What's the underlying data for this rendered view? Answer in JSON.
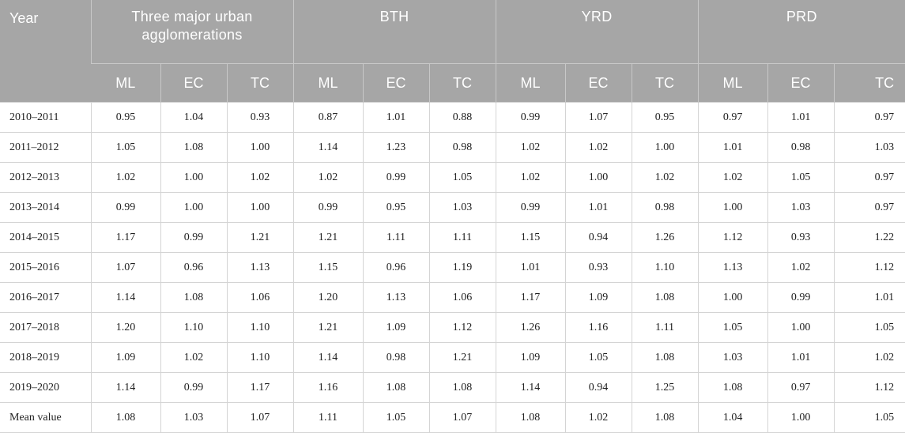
{
  "header": {
    "year": "Year",
    "groups": [
      "Three major urban agglomerations",
      "BTH",
      "YRD",
      "PRD"
    ],
    "subcolumns": [
      "ML",
      "EC",
      "TC"
    ]
  },
  "rows": [
    {
      "year": "2010–2011",
      "values": [
        "0.95",
        "1.04",
        "0.93",
        "0.87",
        "1.01",
        "0.88",
        "0.99",
        "1.07",
        "0.95",
        "0.97",
        "1.01",
        "0.97"
      ]
    },
    {
      "year": "2011–2012",
      "values": [
        "1.05",
        "1.08",
        "1.00",
        "1.14",
        "1.23",
        "0.98",
        "1.02",
        "1.02",
        "1.00",
        "1.01",
        "0.98",
        "1.03"
      ]
    },
    {
      "year": "2012–2013",
      "values": [
        "1.02",
        "1.00",
        "1.02",
        "1.02",
        "0.99",
        "1.05",
        "1.02",
        "1.00",
        "1.02",
        "1.02",
        "1.05",
        "0.97"
      ]
    },
    {
      "year": "2013–2014",
      "values": [
        "0.99",
        "1.00",
        "1.00",
        "0.99",
        "0.95",
        "1.03",
        "0.99",
        "1.01",
        "0.98",
        "1.00",
        "1.03",
        "0.97"
      ]
    },
    {
      "year": "2014–2015",
      "values": [
        "1.17",
        "0.99",
        "1.21",
        "1.21",
        "1.11",
        "1.11",
        "1.15",
        "0.94",
        "1.26",
        "1.12",
        "0.93",
        "1.22"
      ]
    },
    {
      "year": "2015–2016",
      "values": [
        "1.07",
        "0.96",
        "1.13",
        "1.15",
        "0.96",
        "1.19",
        "1.01",
        "0.93",
        "1.10",
        "1.13",
        "1.02",
        "1.12"
      ]
    },
    {
      "year": "2016–2017",
      "values": [
        "1.14",
        "1.08",
        "1.06",
        "1.20",
        "1.13",
        "1.06",
        "1.17",
        "1.09",
        "1.08",
        "1.00",
        "0.99",
        "1.01"
      ]
    },
    {
      "year": "2017–2018",
      "values": [
        "1.20",
        "1.10",
        "1.10",
        "1.21",
        "1.09",
        "1.12",
        "1.26",
        "1.16",
        "1.11",
        "1.05",
        "1.00",
        "1.05"
      ]
    },
    {
      "year": "2018–2019",
      "values": [
        "1.09",
        "1.02",
        "1.10",
        "1.14",
        "0.98",
        "1.21",
        "1.09",
        "1.05",
        "1.08",
        "1.03",
        "1.01",
        "1.02"
      ]
    },
    {
      "year": "2019–2020",
      "values": [
        "1.14",
        "0.99",
        "1.17",
        "1.16",
        "1.08",
        "1.08",
        "1.14",
        "0.94",
        "1.25",
        "1.08",
        "0.97",
        "1.12"
      ]
    },
    {
      "year": "Mean value",
      "values": [
        "1.08",
        "1.03",
        "1.07",
        "1.11",
        "1.05",
        "1.07",
        "1.08",
        "1.02",
        "1.08",
        "1.04",
        "1.00",
        "1.05"
      ]
    }
  ]
}
